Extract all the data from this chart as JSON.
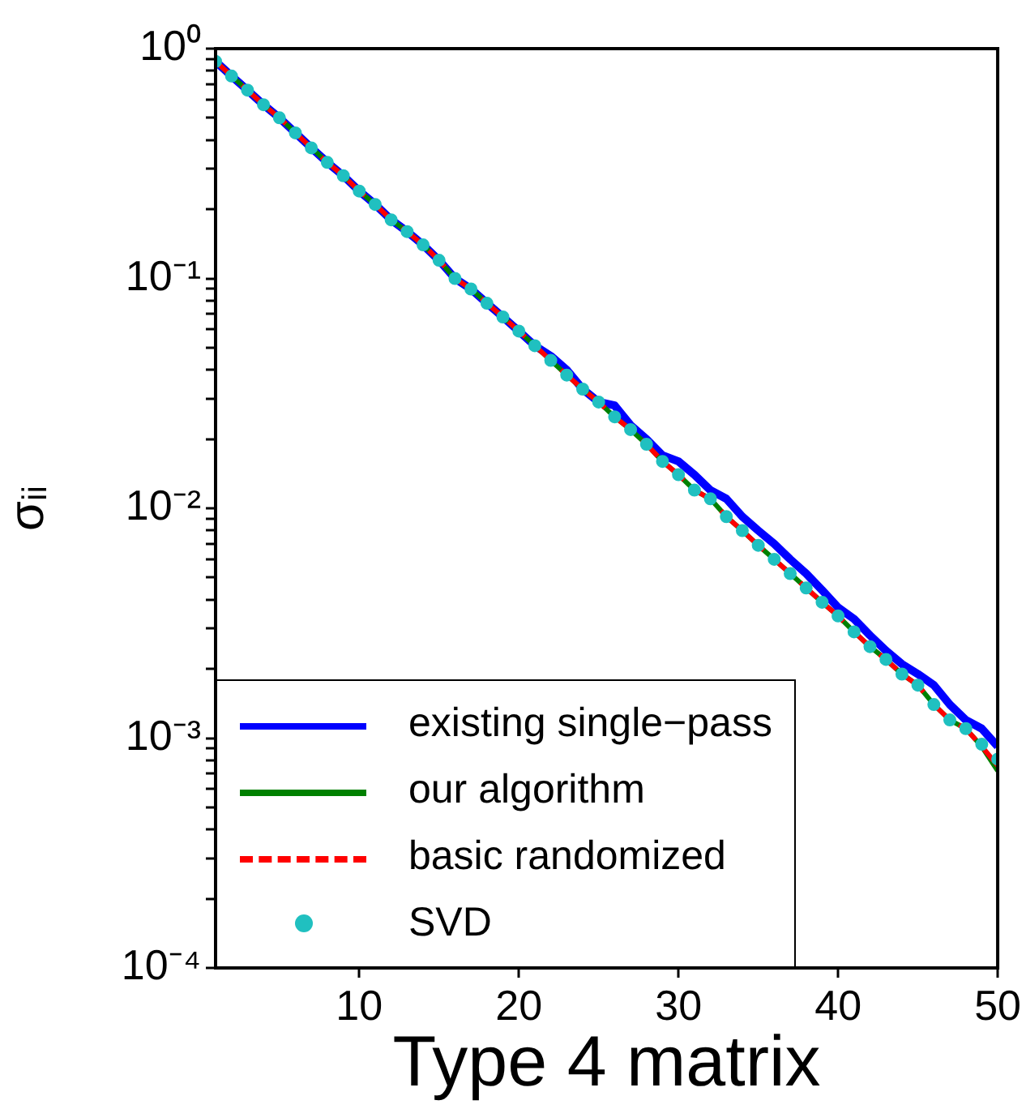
{
  "chart_data": {
    "type": "line",
    "xlabel": "Type 4 matrix",
    "ylabel": "σᵢᵢ",
    "log": "y",
    "grid": false,
    "legend": "bottom left",
    "xlim": [
      1,
      50
    ],
    "xticks": [
      10,
      20,
      30,
      40,
      50
    ],
    "ylim": [
      0.0001,
      1
    ],
    "yticks": [
      {
        "value": 0.0001,
        "label": "10⁻⁴"
      },
      {
        "value": 0.0002,
        "label": null
      },
      {
        "value": 0.0003,
        "label": null
      },
      {
        "value": 0.0004,
        "label": null
      },
      {
        "value": 0.0005,
        "label": null
      },
      {
        "value": 0.0006,
        "label": null
      },
      {
        "value": 0.0007,
        "label": null
      },
      {
        "value": 0.0008,
        "label": null
      },
      {
        "value": 0.0009,
        "label": null
      },
      {
        "value": 0.001,
        "label": "10⁻³"
      },
      {
        "value": 0.002,
        "label": null
      },
      {
        "value": 0.003,
        "label": null
      },
      {
        "value": 0.004,
        "label": null
      },
      {
        "value": 0.005,
        "label": null
      },
      {
        "value": 0.006,
        "label": null
      },
      {
        "value": 0.007,
        "label": null
      },
      {
        "value": 0.008,
        "label": null
      },
      {
        "value": 0.009,
        "label": null
      },
      {
        "value": 0.01,
        "label": "10⁻²"
      },
      {
        "value": 0.02,
        "label": null
      },
      {
        "value": 0.03,
        "label": null
      },
      {
        "value": 0.04,
        "label": null
      },
      {
        "value": 0.05,
        "label": null
      },
      {
        "value": 0.06,
        "label": null
      },
      {
        "value": 0.07,
        "label": null
      },
      {
        "value": 0.08,
        "label": null
      },
      {
        "value": 0.09,
        "label": null
      },
      {
        "value": 0.1,
        "label": "10⁻¹"
      },
      {
        "value": 0.2,
        "label": null
      },
      {
        "value": 0.3,
        "label": null
      },
      {
        "value": 0.4,
        "label": null
      },
      {
        "value": 0.5,
        "label": null
      },
      {
        "value": 0.6,
        "label": null
      },
      {
        "value": 0.7,
        "label": null
      },
      {
        "value": 0.8,
        "label": null
      },
      {
        "value": 0.9,
        "label": null
      },
      {
        "value": 1,
        "label": "10⁰"
      }
    ],
    "x": [
      1,
      2,
      3,
      4,
      5,
      6,
      7,
      8,
      9,
      10,
      11,
      12,
      13,
      14,
      15,
      16,
      17,
      18,
      19,
      20,
      21,
      22,
      23,
      24,
      25,
      26,
      27,
      28,
      29,
      30,
      31,
      32,
      33,
      34,
      35,
      36,
      37,
      38,
      39,
      40,
      41,
      42,
      43,
      44,
      45,
      46,
      47,
      48,
      49,
      50
    ],
    "series": [
      {
        "name": "existing single−pass",
        "color": "#0000ff",
        "type": "line",
        "line_style": "solid",
        "values": [
          0.88,
          0.76,
          0.66,
          0.57,
          0.5,
          0.43,
          0.37,
          0.32,
          0.28,
          0.24,
          0.21,
          0.18,
          0.16,
          0.14,
          0.12,
          0.1,
          0.09,
          0.078,
          0.068,
          0.059,
          0.051,
          0.046,
          0.04,
          0.033,
          0.029,
          0.028,
          0.023,
          0.02,
          0.017,
          0.016,
          0.014,
          0.012,
          0.011,
          0.0092,
          0.008,
          0.007,
          0.006,
          0.0052,
          0.0044,
          0.0037,
          0.0033,
          0.0028,
          0.0024,
          0.0021,
          0.0019,
          0.0017,
          0.0014,
          0.0012,
          0.0011,
          0.00092
        ]
      },
      {
        "name": "our algorithm",
        "color": "#008000",
        "type": "line",
        "line_style": "solid",
        "values": [
          0.88,
          0.76,
          0.66,
          0.57,
          0.5,
          0.43,
          0.37,
          0.32,
          0.28,
          0.24,
          0.21,
          0.18,
          0.16,
          0.14,
          0.12,
          0.1,
          0.09,
          0.078,
          0.068,
          0.059,
          0.051,
          0.044,
          0.038,
          0.033,
          0.029,
          0.025,
          0.022,
          0.019,
          0.016,
          0.014,
          0.012,
          0.011,
          0.0092,
          0.008,
          0.0069,
          0.006,
          0.0052,
          0.0045,
          0.0039,
          0.0034,
          0.0029,
          0.0025,
          0.0022,
          0.0019,
          0.0017,
          0.0014,
          0.0012,
          0.0011,
          0.00092,
          0.00072
        ]
      },
      {
        "name": "basic randomized",
        "color": "#ff0000",
        "type": "line",
        "line_style": "dashed",
        "values": [
          0.88,
          0.76,
          0.66,
          0.57,
          0.5,
          0.43,
          0.37,
          0.32,
          0.28,
          0.24,
          0.21,
          0.18,
          0.16,
          0.14,
          0.12,
          0.1,
          0.09,
          0.078,
          0.068,
          0.059,
          0.051,
          0.044,
          0.038,
          0.033,
          0.029,
          0.025,
          0.022,
          0.019,
          0.016,
          0.014,
          0.012,
          0.011,
          0.0092,
          0.008,
          0.0069,
          0.006,
          0.0052,
          0.0045,
          0.0039,
          0.0034,
          0.0029,
          0.0025,
          0.0022,
          0.0019,
          0.0017,
          0.0014,
          0.0012,
          0.0011,
          0.00092,
          0.00076
        ]
      },
      {
        "name": "SVD",
        "color": "#20c0c0",
        "type": "scatter",
        "marker": "circle",
        "values": [
          0.88,
          0.76,
          0.66,
          0.57,
          0.5,
          0.43,
          0.37,
          0.32,
          0.28,
          0.24,
          0.21,
          0.18,
          0.16,
          0.14,
          0.12,
          0.1,
          0.09,
          0.078,
          0.068,
          0.059,
          0.051,
          0.044,
          0.038,
          0.033,
          0.029,
          0.025,
          0.022,
          0.019,
          0.016,
          0.014,
          0.012,
          0.011,
          0.0092,
          0.008,
          0.0069,
          0.006,
          0.0052,
          0.0045,
          0.0039,
          0.0034,
          0.0029,
          0.0025,
          0.0022,
          0.0019,
          0.0017,
          0.0014,
          0.0012,
          0.0011,
          0.00094,
          0.00081
        ]
      }
    ]
  }
}
